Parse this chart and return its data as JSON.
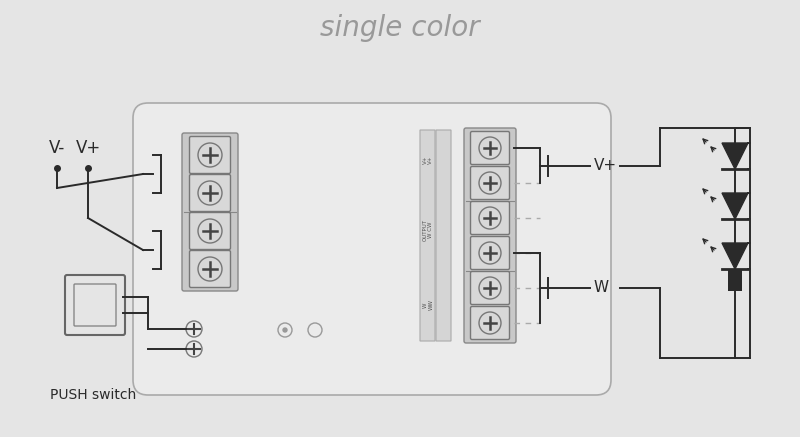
{
  "title": "single color",
  "title_color": "#999999",
  "title_fontsize": 20,
  "bg_color": "#e5e5e5",
  "line_color": "#2a2a2a",
  "dash_color": "#aaaaaa",
  "box_bg": "#ebebeb",
  "box_edge": "#aaaaaa",
  "terminal_bg": "#d8d8d8",
  "terminal_edge": "#888888",
  "label_Vminus": "V-",
  "label_Vplus_input": "V+",
  "label_Vplus_output": "V+",
  "label_W": "W",
  "label_push": "PUSH switch"
}
